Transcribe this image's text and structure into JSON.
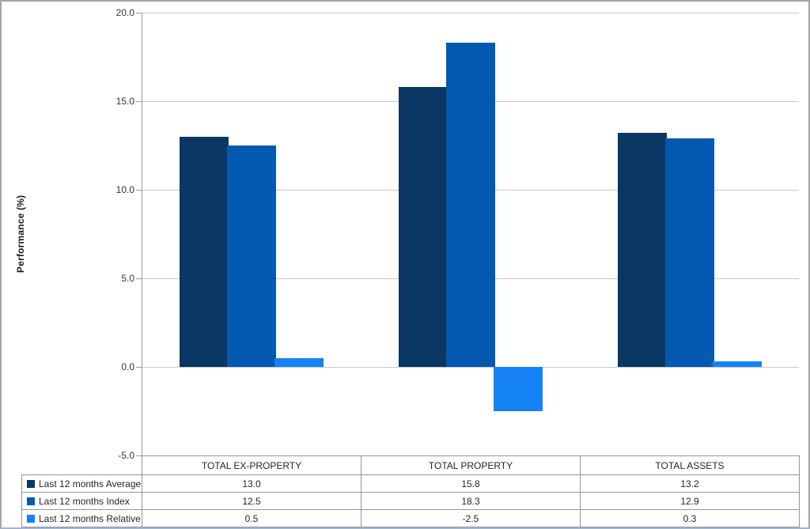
{
  "chart_data": {
    "type": "bar",
    "title": "",
    "ylabel": "Performance (%)",
    "xlabel": "",
    "categories": [
      "TOTAL EX-PROPERTY",
      "TOTAL PROPERTY",
      "TOTAL ASSETS"
    ],
    "series": [
      {
        "name": "Last 12 months Average",
        "color": "#0a3764",
        "values": [
          13.0,
          15.8,
          13.2
        ],
        "display": [
          "13.0",
          "15.8",
          "13.2"
        ]
      },
      {
        "name": "Last 12 months Index",
        "color": "#0459b0",
        "values": [
          12.5,
          18.3,
          12.9
        ],
        "display": [
          "12.5",
          "18.3",
          "12.9"
        ]
      },
      {
        "name": "Last 12 months Relative",
        "color": "#1583f5",
        "values": [
          0.5,
          -2.5,
          0.3
        ],
        "display": [
          "0.5",
          "-2.5",
          "0.3"
        ]
      }
    ],
    "ylim": [
      -5.0,
      20.0
    ],
    "ytick_step": 5.0,
    "ytick_labels": [
      "20.0",
      "15.0",
      "10.0",
      "5.0",
      "0.0",
      "-5.0"
    ],
    "grid": true,
    "legend_position": "data-table-left-column",
    "has_data_table": true
  },
  "style": {
    "grid_color": "#c8c8c8",
    "axis_color": "#9b9b9b",
    "table_border_color": "#969696",
    "text_color": "#262626",
    "background": "#ffffff"
  }
}
